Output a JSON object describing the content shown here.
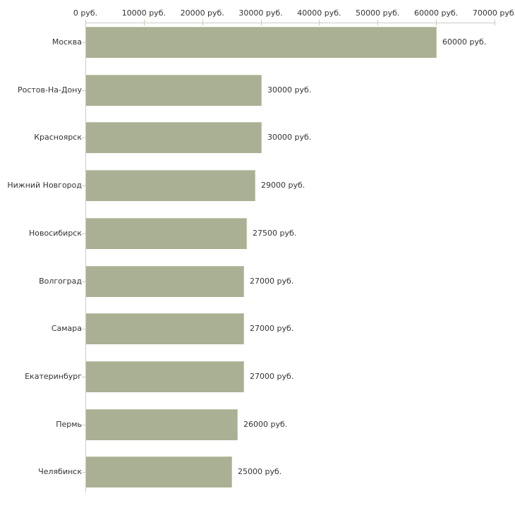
{
  "chart_data": {
    "type": "bar",
    "orientation": "horizontal",
    "title": "",
    "categories": [
      "Москва",
      "Ростов-На-Дону",
      "Красноярск",
      "Нижний Новгород",
      "Новосибирск",
      "Волгоград",
      "Самара",
      "Екатеринбург",
      "Пермь",
      "Челябинск"
    ],
    "values": [
      60000,
      30000,
      30000,
      29000,
      27500,
      27000,
      27000,
      27000,
      26000,
      25000
    ],
    "value_labels": [
      "60000 руб.",
      "30000 руб.",
      "30000 руб.",
      "29000 руб.",
      "27500 руб.",
      "27000 руб.",
      "27000 руб.",
      "27000 руб.",
      "26000 руб.",
      "25000 руб."
    ],
    "xlabel": "",
    "ylabel": "",
    "x_axis": {
      "position": "top",
      "range": [
        0,
        70000
      ],
      "tick_values": [
        0,
        10000,
        20000,
        30000,
        40000,
        50000,
        60000,
        70000
      ],
      "tick_labels": [
        "0 руб.",
        "10000 руб.",
        "20000 руб.",
        "30000 руб.",
        "40000 руб.",
        "50000 руб.",
        "60000 руб.",
        "70000 руб."
      ]
    },
    "grid": false,
    "legend": false
  },
  "colors": {
    "background": "#ffffff",
    "bar_fill": "#aab094",
    "bar_border": "#c2c6ad",
    "axis_line": "#cccccc",
    "axis_tick": "#c9c9a9",
    "category_tick": "#ccccb3",
    "text": "#333333"
  }
}
